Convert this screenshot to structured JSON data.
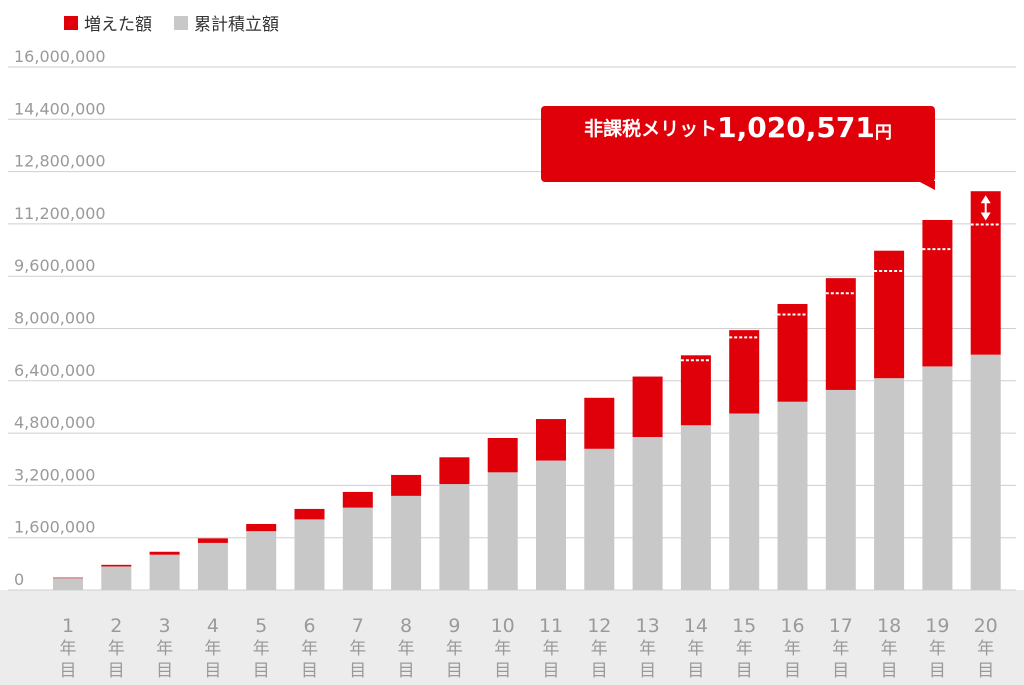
{
  "legend": [
    {
      "label": "増えた額",
      "color": "#e0000a"
    },
    {
      "label": "累計積立額",
      "color": "#c8c8c8"
    }
  ],
  "callout": {
    "label": "非課税メリット",
    "value": "1,020,571",
    "unit": "円"
  },
  "chart_data": {
    "type": "bar",
    "stacked": true,
    "categories": [
      "1年目",
      "2年目",
      "3年目",
      "4年目",
      "5年目",
      "6年目",
      "7年目",
      "8年目",
      "9年目",
      "10年目",
      "11年目",
      "12年目",
      "13年目",
      "14年目",
      "15年目",
      "16年目",
      "17年目",
      "18年目",
      "19年目",
      "20年目"
    ],
    "series": [
      {
        "name": "累計積立額",
        "color": "#c8c8c8",
        "values": [
          360000,
          720000,
          1080000,
          1440000,
          1800000,
          2160000,
          2520000,
          2880000,
          3240000,
          3600000,
          3960000,
          4320000,
          4680000,
          5040000,
          5400000,
          5760000,
          6120000,
          6480000,
          6840000,
          7200000
        ]
      },
      {
        "name": "増えた額",
        "color": "#e0000a",
        "values": [
          20000,
          50000,
          90000,
          140000,
          220000,
          320000,
          480000,
          640000,
          820000,
          1050000,
          1270000,
          1560000,
          1850000,
          2140000,
          2550000,
          2990000,
          3420000,
          3900000,
          4480000,
          5000000
        ]
      }
    ],
    "markers": [
      {
        "category_index": 13,
        "value": 7030000
      },
      {
        "category_index": 14,
        "value": 7730000
      },
      {
        "category_index": 15,
        "value": 8430000
      },
      {
        "category_index": 16,
        "value": 9080000
      },
      {
        "category_index": 17,
        "value": 9760000
      },
      {
        "category_index": 18,
        "value": 10430000
      },
      {
        "category_index": 19,
        "value": 11180000
      }
    ],
    "yticks": [
      "0",
      "1,600,000",
      "3,200,000",
      "4,800,000",
      "6,400,000",
      "8,000,000",
      "9,600,000",
      "11,200,000",
      "12,800,000",
      "14,400,000",
      "16,000,000"
    ],
    "ylim": [
      0,
      16000000
    ],
    "grid": true,
    "legend_position": "top-left"
  }
}
